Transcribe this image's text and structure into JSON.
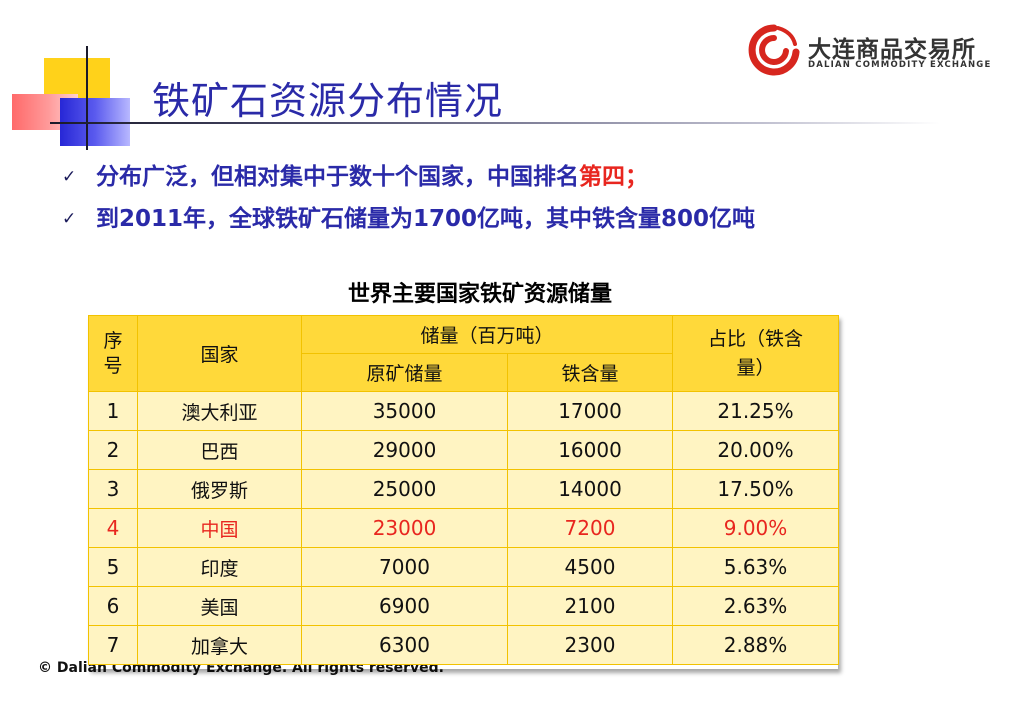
{
  "slide": {
    "title": "铁矿石资源分布情况",
    "logo": {
      "name_cn": "大连商品交易所",
      "name_en": "DALIAN  COMMODITY  EXCHANGE"
    },
    "bullets": [
      {
        "check": "✓",
        "text": "分布广泛，但相对集中于数十个国家，中国排名",
        "highlight": "第四；"
      },
      {
        "check": "✓",
        "text": "到2011年，全球铁矿石储量为1700亿吨，其中铁含量800亿吨",
        "highlight": ""
      }
    ],
    "table_title": "世界主要国家铁矿资源储量",
    "table": {
      "headers": {
        "index": "序号",
        "country": "国家",
        "reserves": "储量（百万吨）",
        "raw": "原矿储量",
        "iron": "铁含量",
        "share": "占比（铁含量）"
      },
      "rows": [
        {
          "index": "1",
          "country": "澳大利亚",
          "raw": "35000",
          "iron": "17000",
          "share": "21.25%"
        },
        {
          "index": "2",
          "country": "巴西",
          "raw": "29000",
          "iron": "16000",
          "share": "20.00%"
        },
        {
          "index": "3",
          "country": "俄罗斯",
          "raw": "25000",
          "iron": "14000",
          "share": "17.50%"
        },
        {
          "index": "4",
          "country": "中国",
          "raw": "23000",
          "iron": "7200",
          "share": "9.00%"
        },
        {
          "index": "5",
          "country": "印度",
          "raw": "7000",
          "iron": "4500",
          "share": "5.63%"
        },
        {
          "index": "6",
          "country": "美国",
          "raw": "6900",
          "iron": "2100",
          "share": "2.63%"
        },
        {
          "index": "7",
          "country": "加拿大",
          "raw": "6300",
          "iron": "2300",
          "share": "2.88%"
        }
      ]
    },
    "copyright": "© Dalian Commodity Exchange. All rights reserved.",
    "colors": {
      "title_blue": "#2a2aa8",
      "highlight_red": "#e8261f",
      "header_yellow": "#ffd93a",
      "cell_yellow": "#fff4c2",
      "logo_red": "#d7261e"
    }
  }
}
